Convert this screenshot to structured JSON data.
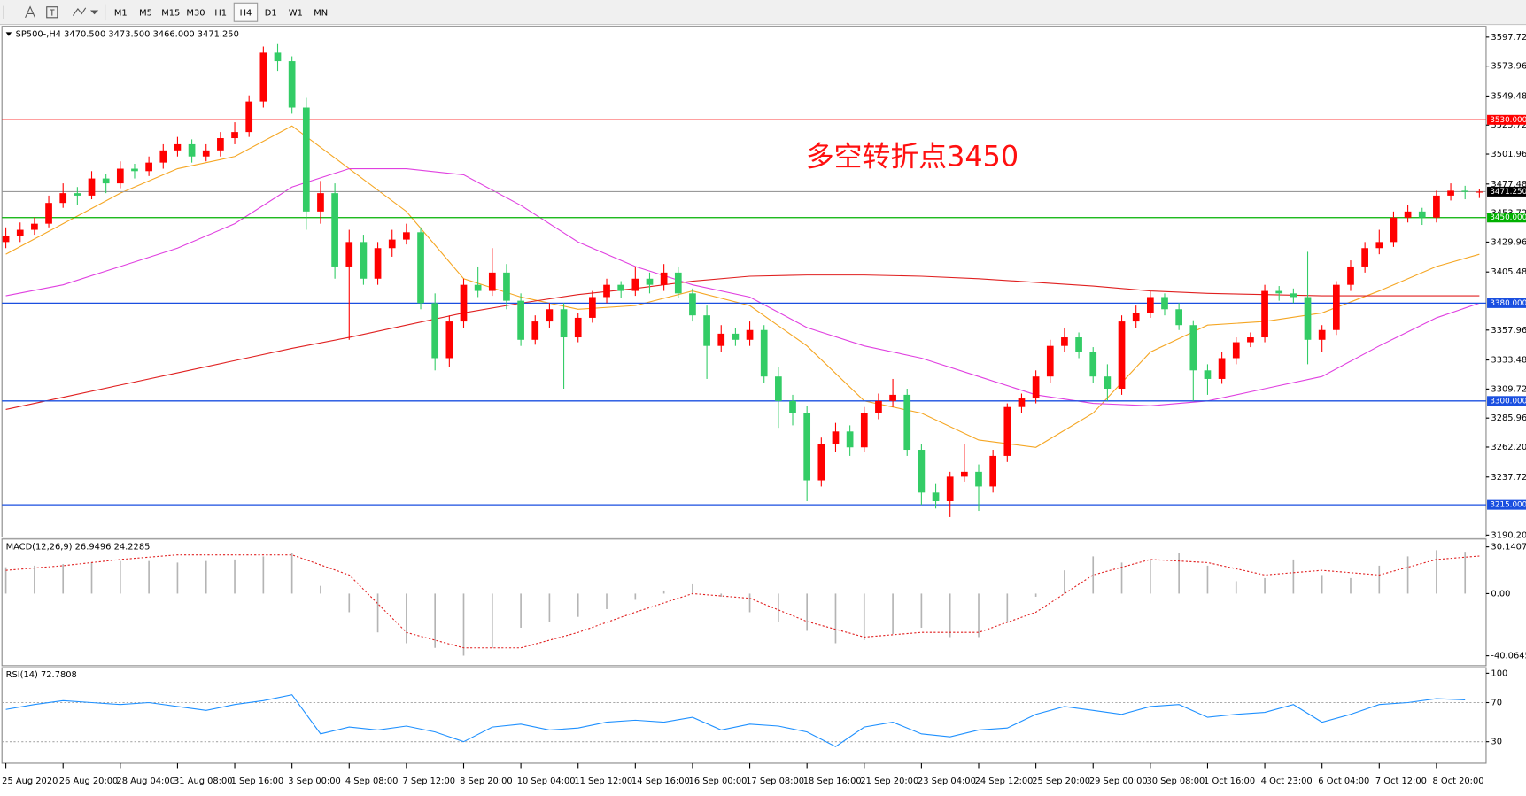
{
  "toolbar": {
    "timeframes": [
      "M1",
      "M5",
      "M15",
      "M30",
      "H1",
      "H4",
      "D1",
      "W1",
      "MN"
    ],
    "active": "H4"
  },
  "chart_data": [
    {
      "type": "candlestick",
      "title": "SP500-,H4 3470.500 3473.500 3466.000 3471.250",
      "annotation": "多空转折点3450",
      "up_color": "#ff0000",
      "down_color": "#33cc66",
      "ylim": [
        3188.6,
        3606.5
      ],
      "yticks": [
        {
          "value": 3597.72,
          "label": "3597.720"
        },
        {
          "value": 3573.96,
          "label": "3573.960"
        },
        {
          "value": 3549.48,
          "label": "3549.480"
        },
        {
          "value": 3525.72,
          "label": "3525.720"
        },
        {
          "value": 3501.96,
          "label": "3501.960"
        },
        {
          "value": 3477.48,
          "label": "3477.480"
        },
        {
          "value": 3453.72,
          "label": "3453.720"
        },
        {
          "value": 3429.96,
          "label": "3429.960"
        },
        {
          "value": 3405.48,
          "label": "3405.480"
        },
        {
          "value": 3357.96,
          "label": "3357.960"
        },
        {
          "value": 3333.48,
          "label": "3333.480"
        },
        {
          "value": 3309.72,
          "label": "3309.720"
        },
        {
          "value": 3285.96,
          "label": "3285.960"
        },
        {
          "value": 3262.2,
          "label": "3262.200"
        },
        {
          "value": 3237.72,
          "label": "3237.720"
        },
        {
          "value": 3190.2,
          "label": "3190.200"
        }
      ],
      "levels": [
        {
          "value": 3530,
          "label": "3530.000",
          "color": "#ff0000"
        },
        {
          "value": 3450,
          "label": "3450.000",
          "color": "#00b000"
        },
        {
          "value": 3380,
          "label": "3380.000",
          "color": "#1a4fe0"
        },
        {
          "value": 3300,
          "label": "3300.000",
          "color": "#1a4fe0"
        },
        {
          "value": 3215,
          "label": "3215.000",
          "color": "#1a4fe0"
        }
      ],
      "last_price": {
        "value": 3471.25,
        "label": "3471.250",
        "color": "#9a9a9a"
      },
      "time_labels": [
        "25 Aug 2020",
        "26 Aug 20:00",
        "28 Aug 04:00",
        "31 Aug 08:00",
        "1 Sep 16:00",
        "3 Sep 00:00",
        "4 Sep 08:00",
        "7 Sep 12:00",
        "8 Sep 20:00",
        "10 Sep 04:00",
        "11 Sep 12:00",
        "14 Sep 16:00",
        "16 Sep 00:00",
        "17 Sep 08:00",
        "18 Sep 16:00",
        "21 Sep 20:00",
        "23 Sep 04:00",
        "24 Sep 12:00",
        "25 Sep 20:00",
        "29 Sep 00:00",
        "30 Sep 08:00",
        "1 Oct 16:00",
        "4 Oct 23:00",
        "6 Oct 04:00",
        "7 Oct 12:00",
        "8 Oct 20:00"
      ],
      "ohlc": [
        [
          3430,
          3442,
          3425,
          3435
        ],
        [
          3435,
          3446,
          3430,
          3440
        ],
        [
          3440,
          3450,
          3436,
          3445
        ],
        [
          3445,
          3468,
          3442,
          3462
        ],
        [
          3462,
          3478,
          3458,
          3470
        ],
        [
          3470,
          3475,
          3460,
          3468
        ],
        [
          3468,
          3488,
          3465,
          3482
        ],
        [
          3482,
          3486,
          3470,
          3478
        ],
        [
          3478,
          3496,
          3474,
          3490
        ],
        [
          3490,
          3494,
          3482,
          3488
        ],
        [
          3488,
          3500,
          3484,
          3495
        ],
        [
          3495,
          3510,
          3490,
          3505
        ],
        [
          3505,
          3516,
          3500,
          3510
        ],
        [
          3510,
          3514,
          3495,
          3500
        ],
        [
          3500,
          3510,
          3496,
          3505
        ],
        [
          3505,
          3520,
          3500,
          3515
        ],
        [
          3515,
          3528,
          3510,
          3520
        ],
        [
          3520,
          3550,
          3516,
          3545
        ],
        [
          3545,
          3590,
          3540,
          3585
        ],
        [
          3585,
          3592,
          3570,
          3578
        ],
        [
          3578,
          3582,
          3535,
          3540
        ],
        [
          3540,
          3548,
          3440,
          3455
        ],
        [
          3455,
          3480,
          3445,
          3470
        ],
        [
          3470,
          3478,
          3400,
          3410
        ],
        [
          3410,
          3440,
          3350,
          3430
        ],
        [
          3430,
          3436,
          3395,
          3400
        ],
        [
          3400,
          3430,
          3395,
          3425
        ],
        [
          3425,
          3440,
          3418,
          3432
        ],
        [
          3432,
          3445,
          3428,
          3438
        ],
        [
          3438,
          3442,
          3375,
          3380
        ],
        [
          3380,
          3388,
          3325,
          3335
        ],
        [
          3335,
          3370,
          3328,
          3365
        ],
        [
          3365,
          3400,
          3360,
          3395
        ],
        [
          3395,
          3410,
          3385,
          3390
        ],
        [
          3390,
          3425,
          3386,
          3405
        ],
        [
          3405,
          3412,
          3375,
          3382
        ],
        [
          3382,
          3388,
          3345,
          3350
        ],
        [
          3350,
          3370,
          3346,
          3365
        ],
        [
          3365,
          3380,
          3360,
          3375
        ],
        [
          3375,
          3380,
          3310,
          3352
        ],
        [
          3352,
          3372,
          3348,
          3368
        ],
        [
          3368,
          3390,
          3364,
          3385
        ],
        [
          3385,
          3400,
          3380,
          3395
        ],
        [
          3395,
          3398,
          3384,
          3390
        ],
        [
          3390,
          3410,
          3386,
          3400
        ],
        [
          3400,
          3405,
          3388,
          3395
        ],
        [
          3395,
          3412,
          3390,
          3405
        ],
        [
          3405,
          3410,
          3384,
          3388
        ],
        [
          3388,
          3392,
          3365,
          3370
        ],
        [
          3370,
          3378,
          3318,
          3345
        ],
        [
          3345,
          3362,
          3340,
          3355
        ],
        [
          3355,
          3360,
          3345,
          3350
        ],
        [
          3350,
          3365,
          3345,
          3358
        ],
        [
          3358,
          3362,
          3315,
          3320
        ],
        [
          3320,
          3328,
          3278,
          3300
        ],
        [
          3300,
          3305,
          3280,
          3290
        ],
        [
          3290,
          3296,
          3218,
          3235
        ],
        [
          3235,
          3270,
          3230,
          3265
        ],
        [
          3265,
          3282,
          3258,
          3275
        ],
        [
          3275,
          3280,
          3255,
          3262
        ],
        [
          3262,
          3295,
          3258,
          3290
        ],
        [
          3290,
          3306,
          3285,
          3300
        ],
        [
          3300,
          3318,
          3295,
          3305
        ],
        [
          3305,
          3310,
          3255,
          3260
        ],
        [
          3260,
          3265,
          3215,
          3225
        ],
        [
          3225,
          3232,
          3212,
          3218
        ],
        [
          3218,
          3242,
          3205,
          3238
        ],
        [
          3238,
          3265,
          3234,
          3242
        ],
        [
          3242,
          3248,
          3210,
          3230
        ],
        [
          3230,
          3260,
          3225,
          3255
        ],
        [
          3255,
          3298,
          3250,
          3295
        ],
        [
          3295,
          3306,
          3290,
          3302
        ],
        [
          3302,
          3325,
          3298,
          3320
        ],
        [
          3320,
          3350,
          3315,
          3345
        ],
        [
          3345,
          3360,
          3340,
          3352
        ],
        [
          3352,
          3356,
          3335,
          3340
        ],
        [
          3340,
          3344,
          3315,
          3320
        ],
        [
          3320,
          3330,
          3300,
          3310
        ],
        [
          3310,
          3370,
          3305,
          3365
        ],
        [
          3365,
          3378,
          3360,
          3372
        ],
        [
          3372,
          3390,
          3368,
          3385
        ],
        [
          3385,
          3388,
          3370,
          3375
        ],
        [
          3375,
          3380,
          3358,
          3362
        ],
        [
          3362,
          3366,
          3300,
          3325
        ],
        [
          3325,
          3330,
          3305,
          3318
        ],
        [
          3318,
          3340,
          3314,
          3335
        ],
        [
          3335,
          3352,
          3330,
          3348
        ],
        [
          3348,
          3356,
          3344,
          3352
        ],
        [
          3352,
          3395,
          3348,
          3390
        ],
        [
          3390,
          3394,
          3382,
          3388
        ],
        [
          3388,
          3392,
          3380,
          3385
        ],
        [
          3385,
          3422,
          3330,
          3350
        ],
        [
          3350,
          3362,
          3340,
          3358
        ],
        [
          3358,
          3398,
          3354,
          3395
        ],
        [
          3395,
          3415,
          3390,
          3410
        ],
        [
          3410,
          3430,
          3405,
          3425
        ],
        [
          3425,
          3440,
          3420,
          3430
        ],
        [
          3430,
          3455,
          3426,
          3450
        ],
        [
          3450,
          3460,
          3446,
          3455
        ],
        [
          3455,
          3458,
          3444,
          3450
        ],
        [
          3450,
          3472,
          3446,
          3468
        ],
        [
          3468,
          3478,
          3464,
          3472
        ],
        [
          3472,
          3476,
          3465,
          3471
        ],
        [
          3470.5,
          3473.5,
          3466,
          3471.25
        ]
      ],
      "moving_averages": [
        {
          "color": "#f5a623",
          "values": [
            3420,
            3445,
            3470,
            3490,
            3500,
            3525,
            3490,
            3455,
            3400,
            3385,
            3375,
            3378,
            3390,
            3378,
            3345,
            3300,
            3290,
            3268,
            3262,
            3290,
            3340,
            3362,
            3365,
            3372,
            3390,
            3410,
            3420
          ]
        },
        {
          "color": "#e040e0",
          "values": [
            3386,
            3395,
            3410,
            3425,
            3445,
            3475,
            3490,
            3490,
            3485,
            3460,
            3430,
            3410,
            3395,
            3385,
            3360,
            3345,
            3335,
            3320,
            3305,
            3298,
            3296,
            3300,
            3310,
            3320,
            3345,
            3368,
            3380
          ]
        },
        {
          "color": "#e02020",
          "values": [
            3293,
            3303,
            3313,
            3323,
            3333,
            3343,
            3352,
            3362,
            3372,
            3380,
            3387,
            3392,
            3398,
            3402,
            3403,
            3403,
            3402,
            3400,
            3397,
            3394,
            3390,
            3388,
            3387,
            3386,
            3386,
            3386,
            3386
          ]
        }
      ]
    },
    {
      "type": "macd",
      "title": "MACD(12,26,9) 26.9496 24.2285",
      "ylim": [
        -46.5,
        35.2
      ],
      "yticks": [
        30.1407,
        {
          "value": 0,
          "label": "0.00"
        },
        -40.0645
      ],
      "histogram": {
        "color": "#b4b4b4",
        "values": [
          17,
          18,
          19,
          20,
          21,
          21,
          20,
          21,
          22,
          24,
          26,
          5,
          -12,
          -25,
          -32,
          -35,
          -40,
          -35,
          -22,
          -18,
          -15,
          -10,
          -4,
          2,
          6,
          -2,
          -12,
          -18,
          -24,
          -32,
          -30,
          -26,
          -22,
          -28,
          -28,
          -18,
          -2,
          15,
          24,
          20,
          22,
          26,
          18,
          8,
          10,
          22,
          12,
          10,
          18,
          24,
          28,
          27
        ]
      },
      "signal": {
        "color": "#e02020",
        "values": [
          15,
          18,
          22,
          25,
          25,
          25,
          12,
          -25,
          -35,
          -35,
          -25,
          -12,
          0,
          -3,
          -18,
          -28,
          -25,
          -25,
          -12,
          12,
          22,
          20,
          12,
          15,
          12,
          22,
          24.2285
        ]
      }
    },
    {
      "type": "rsi",
      "title": "RSI(14) 72.7808",
      "ylim": [
        8,
        105.7
      ],
      "yticks": [
        100,
        70,
        30
      ],
      "levels": [
        70,
        30
      ],
      "color": "#1e90ff",
      "values": [
        63,
        68,
        72,
        70,
        68,
        70,
        66,
        62,
        68,
        72,
        78,
        38,
        45,
        42,
        46,
        40,
        30,
        45,
        48,
        42,
        44,
        50,
        52,
        50,
        55,
        42,
        48,
        46,
        40,
        25,
        45,
        50,
        38,
        35,
        42,
        44,
        58,
        66,
        62,
        58,
        66,
        68,
        55,
        58,
        60,
        68,
        50,
        58,
        68,
        70,
        74,
        72.7808
      ]
    }
  ]
}
